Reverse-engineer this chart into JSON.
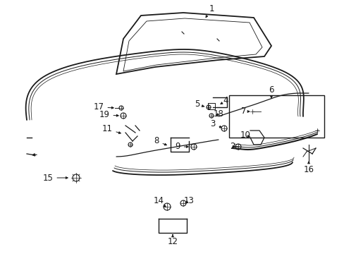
{
  "background_color": "#ffffff",
  "line_color": "#1a1a1a",
  "text_color": "#1a1a1a",
  "fig_width": 4.89,
  "fig_height": 3.6,
  "dpi": 100
}
